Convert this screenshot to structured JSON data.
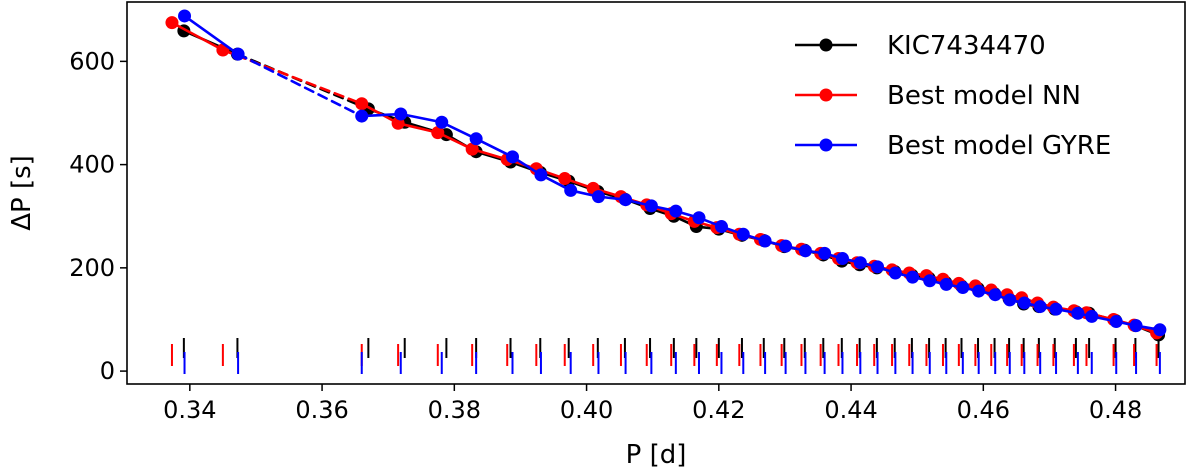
{
  "chart_data": {
    "type": "line",
    "title": "",
    "xlabel": "P [d]",
    "ylabel": "ΔP [s]",
    "xlim": [
      0.3305,
      0.4905
    ],
    "ylim": [
      -25,
      715
    ],
    "x_ticks": [
      0.34,
      0.36,
      0.38,
      0.4,
      0.42,
      0.44,
      0.46,
      0.48
    ],
    "x_tick_labels": [
      "0.34",
      "0.36",
      "0.38",
      "0.40",
      "0.42",
      "0.44",
      "0.46",
      "0.48"
    ],
    "y_ticks": [
      0,
      200,
      400,
      600
    ],
    "y_tick_labels": [
      "0",
      "200",
      "400",
      "600"
    ],
    "legend_position": "top-right",
    "series": [
      {
        "name": "KIC7434470",
        "color": "#000000",
        "x": [
          0.3391,
          0.3472,
          0.367,
          0.3725,
          0.3788,
          0.3833,
          0.3885,
          0.393,
          0.3973,
          0.4017,
          0.4058,
          0.4096,
          0.4132,
          0.4166,
          0.42,
          0.4235,
          0.4268,
          0.4299,
          0.433,
          0.4358,
          0.4386,
          0.4413,
          0.4439,
          0.4466,
          0.4492,
          0.4518,
          0.4543,
          0.4567,
          0.4592,
          0.4617,
          0.4639,
          0.4661,
          0.4684,
          0.4708,
          0.474,
          0.476,
          0.48,
          0.483,
          0.4865
        ],
        "y": [
          659,
          614,
          508,
          482,
          458,
          425,
          405,
          385,
          368,
          348,
          333,
          315,
          300,
          280,
          275,
          263,
          253,
          241,
          234,
          225,
          213,
          206,
          200,
          193,
          186,
          180,
          172,
          165,
          160,
          150,
          140,
          130,
          125,
          120,
          115,
          112,
          98,
          88,
          70
        ]
      },
      {
        "name": "Best model NN",
        "color": "#ff0000",
        "x": [
          0.3373,
          0.345,
          0.366,
          0.3715,
          0.3775,
          0.3827,
          0.388,
          0.3924,
          0.3967,
          0.401,
          0.4052,
          0.4091,
          0.4128,
          0.4163,
          0.4197,
          0.4231,
          0.4263,
          0.4295,
          0.4325,
          0.4354,
          0.4381,
          0.4409,
          0.4435,
          0.4462,
          0.4488,
          0.4514,
          0.4539,
          0.4563,
          0.4588,
          0.4612,
          0.4636,
          0.4658,
          0.4682,
          0.4706,
          0.4737,
          0.4756,
          0.4797,
          0.4828,
          0.4862
        ],
        "y": [
          675,
          622,
          518,
          480,
          462,
          430,
          410,
          392,
          373,
          354,
          338,
          322,
          305,
          290,
          278,
          265,
          255,
          243,
          236,
          228,
          218,
          210,
          203,
          196,
          190,
          185,
          178,
          170,
          165,
          157,
          148,
          142,
          132,
          124,
          117,
          113,
          100,
          89,
          74
        ]
      },
      {
        "name": "Best model GYRE",
        "color": "#0000ff",
        "x": [
          0.3392,
          0.3473,
          0.366,
          0.3719,
          0.3781,
          0.3833,
          0.3888,
          0.3931,
          0.3976,
          0.4018,
          0.4059,
          0.4098,
          0.4135,
          0.417,
          0.4204,
          0.4237,
          0.427,
          0.4301,
          0.4331,
          0.436,
          0.4387,
          0.4414,
          0.444,
          0.4467,
          0.4493,
          0.4519,
          0.4544,
          0.4569,
          0.4593,
          0.4618,
          0.464,
          0.4662,
          0.4686,
          0.471,
          0.4743,
          0.4764,
          0.4801,
          0.4831,
          0.4867
        ],
        "y": [
          688,
          614,
          494,
          498,
          482,
          450,
          415,
          380,
          350,
          338,
          332,
          320,
          310,
          297,
          280,
          265,
          252,
          242,
          233,
          228,
          218,
          210,
          202,
          190,
          182,
          175,
          168,
          162,
          155,
          148,
          138,
          132,
          125,
          120,
          112,
          106,
          96,
          88,
          80
        ]
      }
    ],
    "dashed_gaps": [
      {
        "series": "Best model GYRE",
        "from_index": 1,
        "to_index": 2
      },
      {
        "series": "Best model NN",
        "from_index": 1,
        "to_index": 2
      },
      {
        "series": "KIC7434470",
        "from_index": 1,
        "to_index": 2
      }
    ],
    "period_markers_note": "Short vertical tick marks at each series' periods near the bottom of the plot (black top row, red and blue lower rows)."
  }
}
